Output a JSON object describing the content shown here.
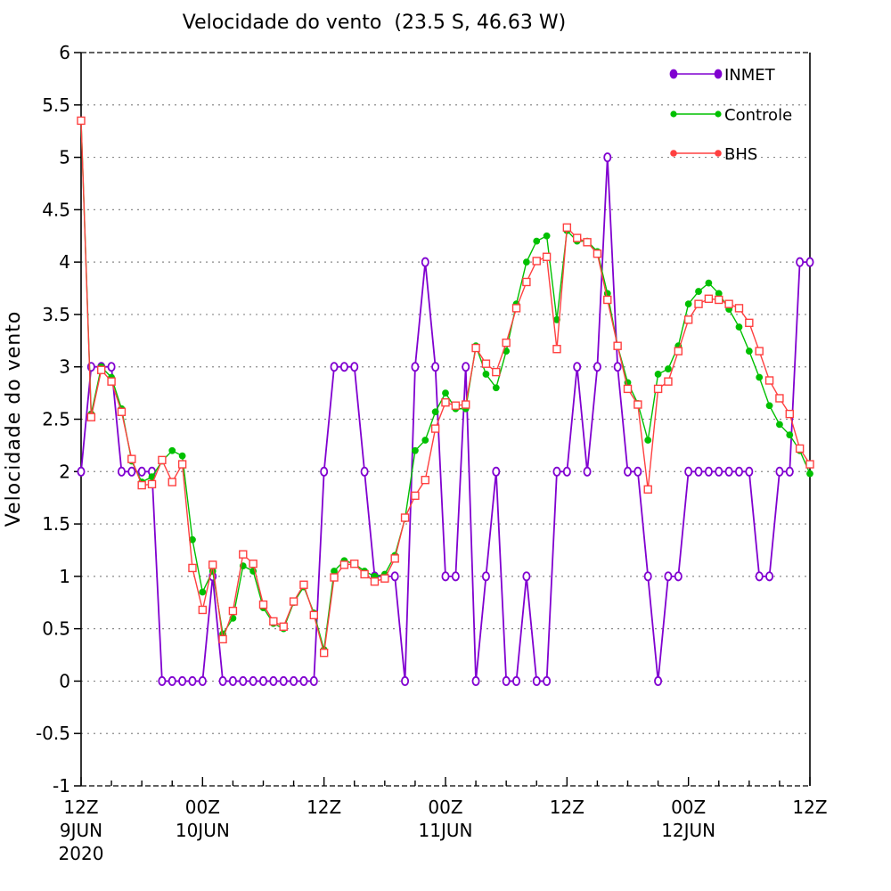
{
  "chart_data": {
    "type": "line",
    "title": "Velocidade do vento  (23.5 S, 46.63 W)",
    "ylabel": "Velocidade do vento",
    "xlabel": "",
    "ylim": [
      -1,
      6
    ],
    "yticks": [
      -1,
      -0.5,
      0,
      0.5,
      1,
      1.5,
      2,
      2.5,
      3,
      3.5,
      4,
      4.5,
      5,
      5.5,
      6
    ],
    "ytick_labels": [
      "-1",
      "-0.5",
      "0",
      "0.5",
      "1",
      "1.5",
      "2",
      "2.5",
      "3",
      "3.5",
      "4",
      "4.5",
      "5",
      "5.5",
      "6"
    ],
    "xlim_hours": [
      0,
      72
    ],
    "grid": true,
    "legend_position": "top-right",
    "x_ticks": [
      {
        "hour": 0,
        "lines": [
          "12Z",
          "9JUN",
          "2020"
        ]
      },
      {
        "hour": 12,
        "lines": [
          "00Z",
          "10JUN"
        ]
      },
      {
        "hour": 24,
        "lines": [
          "12Z"
        ]
      },
      {
        "hour": 36,
        "lines": [
          "00Z",
          "11JUN"
        ]
      },
      {
        "hour": 48,
        "lines": [
          "12Z"
        ]
      },
      {
        "hour": 60,
        "lines": [
          "00Z",
          "12JUN"
        ]
      },
      {
        "hour": 72,
        "lines": [
          "12Z"
        ]
      }
    ],
    "series": [
      {
        "name": "INMET",
        "color": "#8000d0",
        "marker": "circle-open",
        "values": [
          2,
          3,
          3,
          3,
          2,
          2,
          2,
          2,
          0,
          0,
          0,
          0,
          0,
          1,
          0,
          0,
          0,
          0,
          0,
          0,
          0,
          0,
          0,
          0,
          2,
          3,
          3,
          3,
          2,
          1,
          1,
          1,
          0,
          3,
          4,
          3,
          1,
          1,
          3,
          0,
          1,
          2,
          0,
          0,
          1,
          0,
          0,
          2,
          2,
          3,
          2,
          3,
          5,
          3,
          2,
          2,
          1,
          0,
          1,
          1,
          2,
          2,
          2,
          2,
          2,
          2,
          2,
          1,
          1,
          2,
          2,
          4,
          4
        ]
      },
      {
        "name": "Controle",
        "color": "#00c000",
        "marker": "circle-filled",
        "values": [
          5.35,
          2.55,
          3,
          2.9,
          2.6,
          2.1,
          1.9,
          1.95,
          2.1,
          2.2,
          2.15,
          1.35,
          0.85,
          1.05,
          0.45,
          0.6,
          1.1,
          1.05,
          0.7,
          0.55,
          0.5,
          0.75,
          0.9,
          0.65,
          0.3,
          1.05,
          1.15,
          1.12,
          1.05,
          1,
          1.02,
          1.2,
          1.55,
          2.2,
          2.3,
          2.57,
          2.75,
          2.6,
          2.6,
          3.2,
          2.93,
          2.8,
          3.15,
          3.6,
          4,
          4.2,
          4.25,
          3.45,
          4.3,
          4.2,
          4.2,
          4.1,
          3.7,
          3.2,
          2.85,
          2.65,
          2.3,
          2.93,
          2.98,
          3.2,
          3.6,
          3.72,
          3.8,
          3.7,
          3.55,
          3.38,
          3.15,
          2.9,
          2.63,
          2.45,
          2.35,
          2.2,
          1.98
        ]
      },
      {
        "name": "BHS",
        "color": "#ff4040",
        "marker": "square-open",
        "values": [
          5.35,
          2.52,
          2.97,
          2.86,
          2.57,
          2.12,
          1.87,
          1.88,
          2.11,
          1.9,
          2.07,
          1.08,
          0.68,
          1.11,
          0.4,
          0.67,
          1.21,
          1.12,
          0.73,
          0.57,
          0.52,
          0.76,
          0.92,
          0.63,
          0.27,
          0.99,
          1.11,
          1.12,
          1.02,
          0.95,
          0.98,
          1.17,
          1.56,
          1.77,
          1.92,
          2.41,
          2.66,
          2.63,
          2.64,
          3.18,
          3.03,
          2.95,
          3.23,
          3.56,
          3.81,
          4.01,
          4.05,
          3.17,
          4.33,
          4.23,
          4.19,
          4.08,
          3.64,
          3.2,
          2.79,
          2.64,
          1.83,
          2.79,
          2.86,
          3.15,
          3.45,
          3.6,
          3.65,
          3.64,
          3.6,
          3.56,
          3.42,
          3.15,
          2.87,
          2.7,
          2.55,
          2.22,
          2.07
        ]
      }
    ]
  }
}
